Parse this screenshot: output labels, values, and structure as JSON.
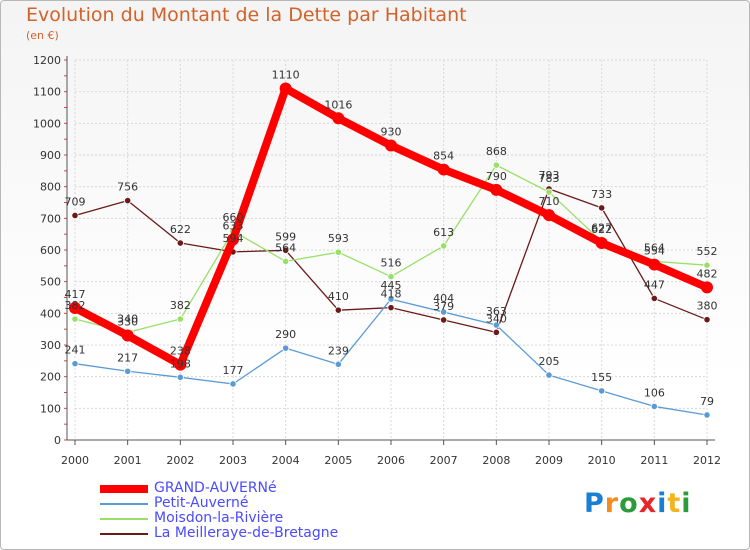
{
  "header": {
    "title": "Evolution du Montant de la Dette par Habitant",
    "subtitle": "(en €)"
  },
  "logo": {
    "text": "Proxiti",
    "icon": "proxiti-logo"
  },
  "colors": {
    "title": "#d2622a",
    "grid": "#d8d8d8",
    "axis": "#555555",
    "tick_mark": "#e04040"
  },
  "chart_data": {
    "type": "line",
    "title": "Evolution du Montant de la Dette par Habitant",
    "subtitle": "(en €)",
    "xlabel": "",
    "ylabel": "",
    "categories": [
      "2000",
      "2001",
      "2002",
      "2003",
      "2004",
      "2005",
      "2006",
      "2007",
      "2008",
      "2009",
      "2010",
      "2011",
      "2012"
    ],
    "ylim": [
      0,
      1200
    ],
    "yticks": [
      0,
      100,
      200,
      300,
      400,
      500,
      600,
      700,
      800,
      900,
      1000,
      1100,
      1200
    ],
    "grid": true,
    "legend_position": "bottom-left",
    "series": [
      {
        "name": "GRAND-AUVERNé",
        "color": "#ff0000",
        "label_color": "#4a4aff",
        "values": [
          417,
          330,
          238,
          633,
          1110,
          1016,
          930,
          854,
          790,
          710,
          622,
          554,
          482
        ]
      },
      {
        "name": "Petit-Auverné",
        "color": "#5b9bd5",
        "label_color": "#4a4aff",
        "values": [
          241,
          217,
          198,
          177,
          290,
          239,
          445,
          404,
          363,
          205,
          155,
          106,
          79
        ]
      },
      {
        "name": "Moisdon-la-Rivière",
        "color": "#99e066",
        "label_color": "#4a4aff",
        "values": [
          382,
          340,
          382,
          660,
          564,
          593,
          516,
          613,
          868,
          783,
          627,
          564,
          552
        ]
      },
      {
        "name": "La Meilleraye-de-Bretagne",
        "color": "#6b1a1a",
        "label_color": "#4a4aff",
        "values": [
          709,
          756,
          622,
          594,
          599,
          410,
          418,
          379,
          340,
          793,
          733,
          447,
          380
        ]
      }
    ]
  }
}
